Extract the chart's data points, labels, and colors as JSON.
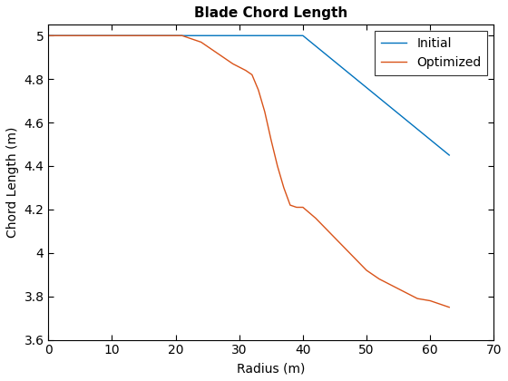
{
  "title": "Blade Chord Length",
  "xlabel": "Radius (m)",
  "ylabel": "Chord Length (m)",
  "xlim": [
    0,
    70
  ],
  "ylim": [
    3.6,
    5.05
  ],
  "xticks": [
    0,
    10,
    20,
    30,
    40,
    50,
    60,
    70
  ],
  "yticks": [
    3.6,
    3.8,
    4.0,
    4.2,
    4.4,
    4.6,
    4.8,
    5.0
  ],
  "ytick_labels": [
    "3.6",
    "3.8",
    "4",
    "4.2",
    "4.4",
    "4.6",
    "4.8",
    "5"
  ],
  "initial": {
    "x": [
      0,
      10,
      20,
      40,
      63
    ],
    "y": [
      5.0,
      5.0,
      5.0,
      5.0,
      4.45
    ],
    "color": "#0072BD",
    "label": "Initial",
    "linewidth": 1.0
  },
  "optimized_x": [
    0,
    5,
    10,
    15,
    20,
    21,
    22,
    23,
    24,
    25,
    26,
    27,
    28,
    29,
    30,
    31,
    32,
    33,
    34,
    35,
    36,
    37,
    38,
    39,
    40,
    42,
    44,
    46,
    48,
    50,
    52,
    54,
    56,
    58,
    60,
    62,
    63
  ],
  "optimized_y": [
    5.0,
    5.0,
    5.0,
    5.0,
    5.0,
    5.0,
    4.99,
    4.98,
    4.97,
    4.95,
    4.93,
    4.91,
    4.89,
    4.87,
    4.855,
    4.84,
    4.82,
    4.75,
    4.65,
    4.52,
    4.4,
    4.3,
    4.22,
    4.21,
    4.21,
    4.16,
    4.1,
    4.04,
    3.98,
    3.92,
    3.88,
    3.85,
    3.82,
    3.79,
    3.78,
    3.76,
    3.75
  ],
  "optimized_color": "#D95319",
  "optimized_label": "Optimized",
  "optimized_linewidth": 1.0,
  "legend_loc": "upper right",
  "background_color": "#ffffff",
  "title_fontsize": 11,
  "label_fontsize": 10,
  "tick_fontsize": 10,
  "figsize": [
    5.6,
    4.2
  ],
  "dpi": 100
}
